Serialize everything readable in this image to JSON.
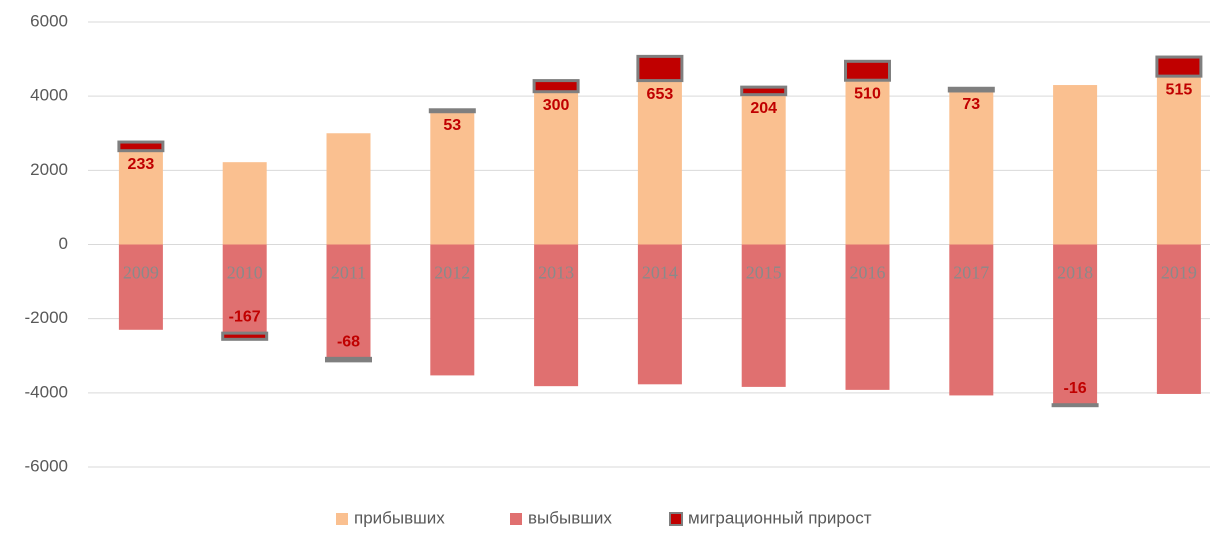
{
  "chart_data": {
    "type": "bar",
    "categories": [
      "2009",
      "2010",
      "2011",
      "2012",
      "2013",
      "2014",
      "2015",
      "2016",
      "2017",
      "2018",
      "2019"
    ],
    "series": [
      {
        "name": "прибывших",
        "color": "#fac090",
        "values": [
          2530,
          2220,
          3000,
          3580,
          4120,
          4420,
          4040,
          4430,
          4140,
          4300,
          4540
        ]
      },
      {
        "name": "выбывших",
        "color": "#e07070",
        "values": [
          -2300,
          -2390,
          -3070,
          -3530,
          -3820,
          -3770,
          -3840,
          -3920,
          -4070,
          -4320,
          -4030
        ]
      },
      {
        "name": "миграционный прирост",
        "color": "#c00000",
        "values": [
          233,
          -167,
          -68,
          53,
          300,
          653,
          204,
          510,
          73,
          -16,
          515
        ]
      }
    ],
    "ylim": [
      -6000,
      6000
    ],
    "yticks": [
      -6000,
      -4000,
      -2000,
      0,
      2000,
      4000,
      6000
    ],
    "grid": true
  }
}
